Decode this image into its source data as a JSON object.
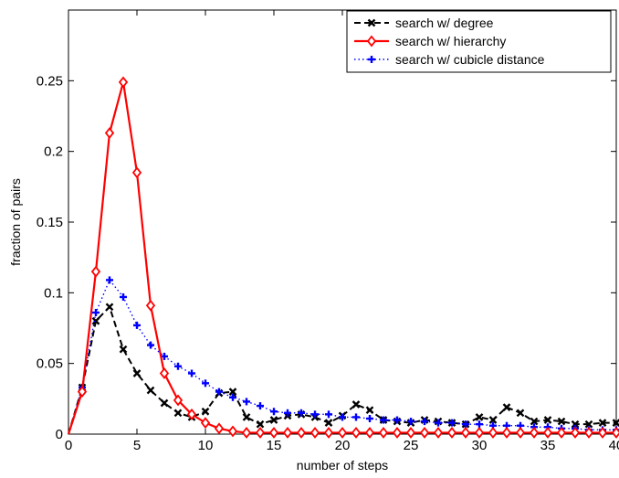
{
  "chart_data": {
    "type": "line",
    "title": "",
    "xlabel": "number of steps",
    "ylabel": "fraction of pairs",
    "xlim": [
      0,
      40
    ],
    "ylim": [
      0,
      0.3
    ],
    "xticks": [
      0,
      5,
      10,
      15,
      20,
      25,
      30,
      35,
      40
    ],
    "yticks": [
      0,
      0.05,
      0.1,
      0.15,
      0.2,
      0.25
    ],
    "ytick_labels": [
      "0",
      "0.05",
      "0.1",
      "0.15",
      "0.2",
      "0.25"
    ],
    "grid": false,
    "legend_position": "top-right",
    "series": [
      {
        "name": "search w/ degree",
        "color": "#000000",
        "line_style": "dashed",
        "marker": "x",
        "x": [
          0,
          1,
          2,
          3,
          4,
          5,
          6,
          7,
          8,
          9,
          10,
          11,
          12,
          13,
          14,
          15,
          16,
          17,
          18,
          19,
          20,
          21,
          22,
          23,
          24,
          25,
          26,
          27,
          28,
          29,
          30,
          31,
          32,
          33,
          34,
          35,
          36,
          37,
          38,
          39,
          40
        ],
        "values": [
          0,
          0.033,
          0.08,
          0.09,
          0.06,
          0.043,
          0.031,
          0.022,
          0.015,
          0.012,
          0.016,
          0.029,
          0.03,
          0.012,
          0.007,
          0.01,
          0.013,
          0.014,
          0.012,
          0.008,
          0.013,
          0.021,
          0.017,
          0.01,
          0.009,
          0.008,
          0.01,
          0.009,
          0.008,
          0.007,
          0.012,
          0.01,
          0.019,
          0.015,
          0.009,
          0.01,
          0.009,
          0.007,
          0.007,
          0.008,
          0.008
        ]
      },
      {
        "name": "search w/ hierarchy",
        "color": "#ff0000",
        "line_style": "solid",
        "marker": "diamond",
        "x": [
          0,
          1,
          2,
          3,
          4,
          5,
          6,
          7,
          8,
          9,
          10,
          11,
          12,
          13,
          14,
          15,
          16,
          17,
          18,
          19,
          20,
          21,
          22,
          23,
          24,
          25,
          26,
          27,
          28,
          29,
          30,
          31,
          32,
          33,
          34,
          35,
          36,
          37,
          38,
          39,
          40
        ],
        "values": [
          0,
          0.03,
          0.115,
          0.213,
          0.249,
          0.185,
          0.091,
          0.043,
          0.024,
          0.014,
          0.008,
          0.004,
          0.002,
          0.001,
          0.001,
          0.001,
          0.001,
          0.001,
          0.001,
          0.001,
          0.001,
          0.001,
          0.001,
          0.001,
          0.001,
          0.001,
          0.001,
          0.001,
          0.001,
          0.001,
          0.001,
          0.001,
          0.001,
          0.001,
          0.001,
          0.001,
          0.001,
          0.001,
          0.001,
          0.001,
          0.001
        ]
      },
      {
        "name": "search w/ cubicle distance",
        "color": "#0000ff",
        "line_style": "dotted",
        "marker": "plus",
        "x": [
          0,
          1,
          2,
          3,
          4,
          5,
          6,
          7,
          8,
          9,
          10,
          11,
          12,
          13,
          14,
          15,
          16,
          17,
          18,
          19,
          20,
          21,
          22,
          23,
          24,
          25,
          26,
          27,
          28,
          29,
          30,
          31,
          32,
          33,
          34,
          35,
          36,
          37,
          38,
          39,
          40
        ],
        "values": [
          0,
          0.033,
          0.086,
          0.109,
          0.097,
          0.077,
          0.063,
          0.055,
          0.048,
          0.043,
          0.036,
          0.03,
          0.026,
          0.023,
          0.02,
          0.016,
          0.015,
          0.015,
          0.014,
          0.014,
          0.012,
          0.012,
          0.011,
          0.01,
          0.01,
          0.009,
          0.009,
          0.008,
          0.008,
          0.007,
          0.007,
          0.006,
          0.006,
          0.006,
          0.005,
          0.005,
          0.004,
          0.004,
          0.003,
          0.003,
          0.003
        ]
      }
    ]
  }
}
